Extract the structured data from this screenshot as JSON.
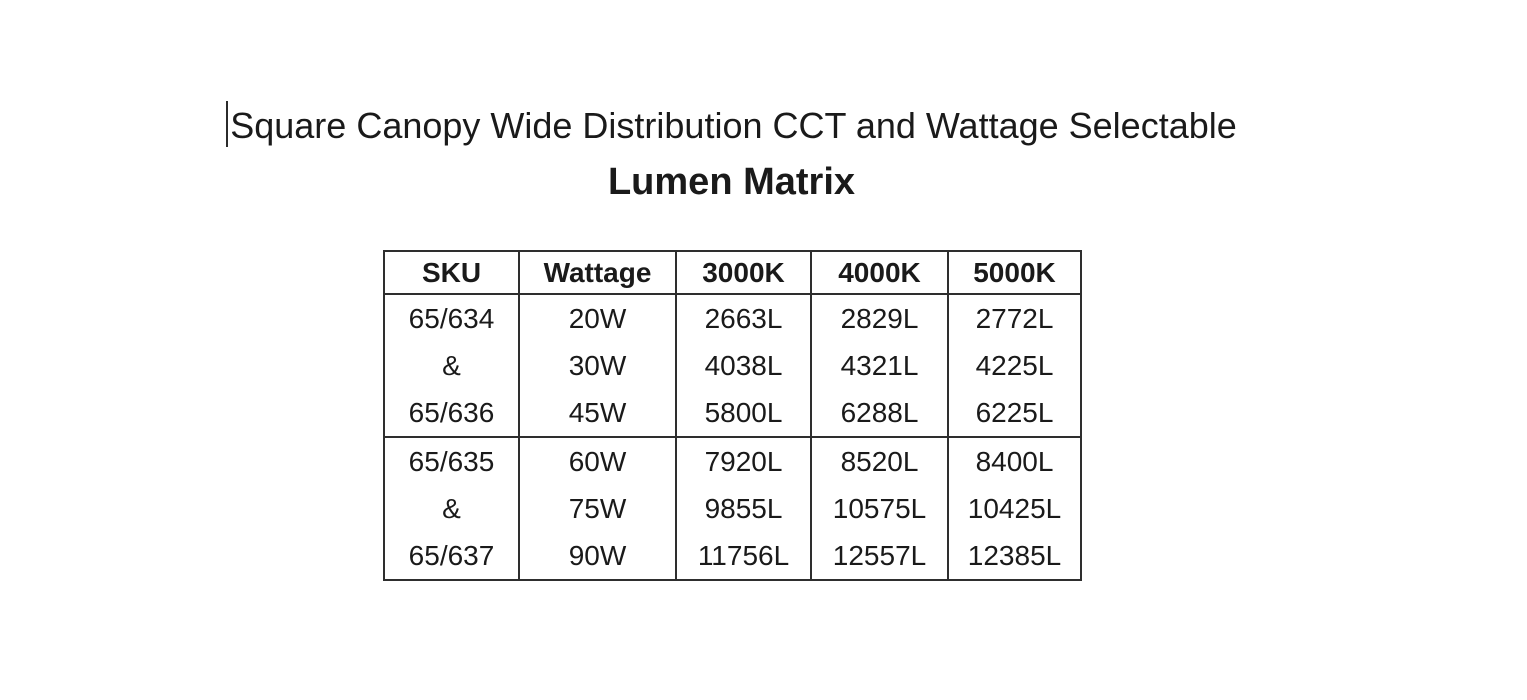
{
  "document": {
    "title": "Square Canopy Wide Distribution CCT and Wattage Selectable",
    "subtitle": "Lumen Matrix"
  },
  "table": {
    "headers": [
      "SKU",
      "Wattage",
      "3000K",
      "4000K",
      "5000K"
    ],
    "groups": [
      {
        "sku": [
          "65/634",
          "&",
          "65/636"
        ],
        "wattage": [
          "20W",
          "30W",
          "45W"
        ],
        "k3000": [
          "2663L",
          "4038L",
          "5800L"
        ],
        "k4000": [
          "2829L",
          "4321L",
          "6288L"
        ],
        "k5000": [
          "2772L",
          "4225L",
          "6225L"
        ]
      },
      {
        "sku": [
          "65/635",
          "&",
          "65/637"
        ],
        "wattage": [
          "60W",
          "75W",
          "90W"
        ],
        "k3000": [
          "7920L",
          "9855L",
          "11756L"
        ],
        "k4000": [
          "8520L",
          "10575L",
          "12557L"
        ],
        "k5000": [
          "8400L",
          "10425L",
          "12385L"
        ]
      }
    ]
  },
  "colors": {
    "background": "#ffffff",
    "text": "#1a1a1a",
    "table_border": "#2e2e2e",
    "caret": "#2b2b2b"
  }
}
